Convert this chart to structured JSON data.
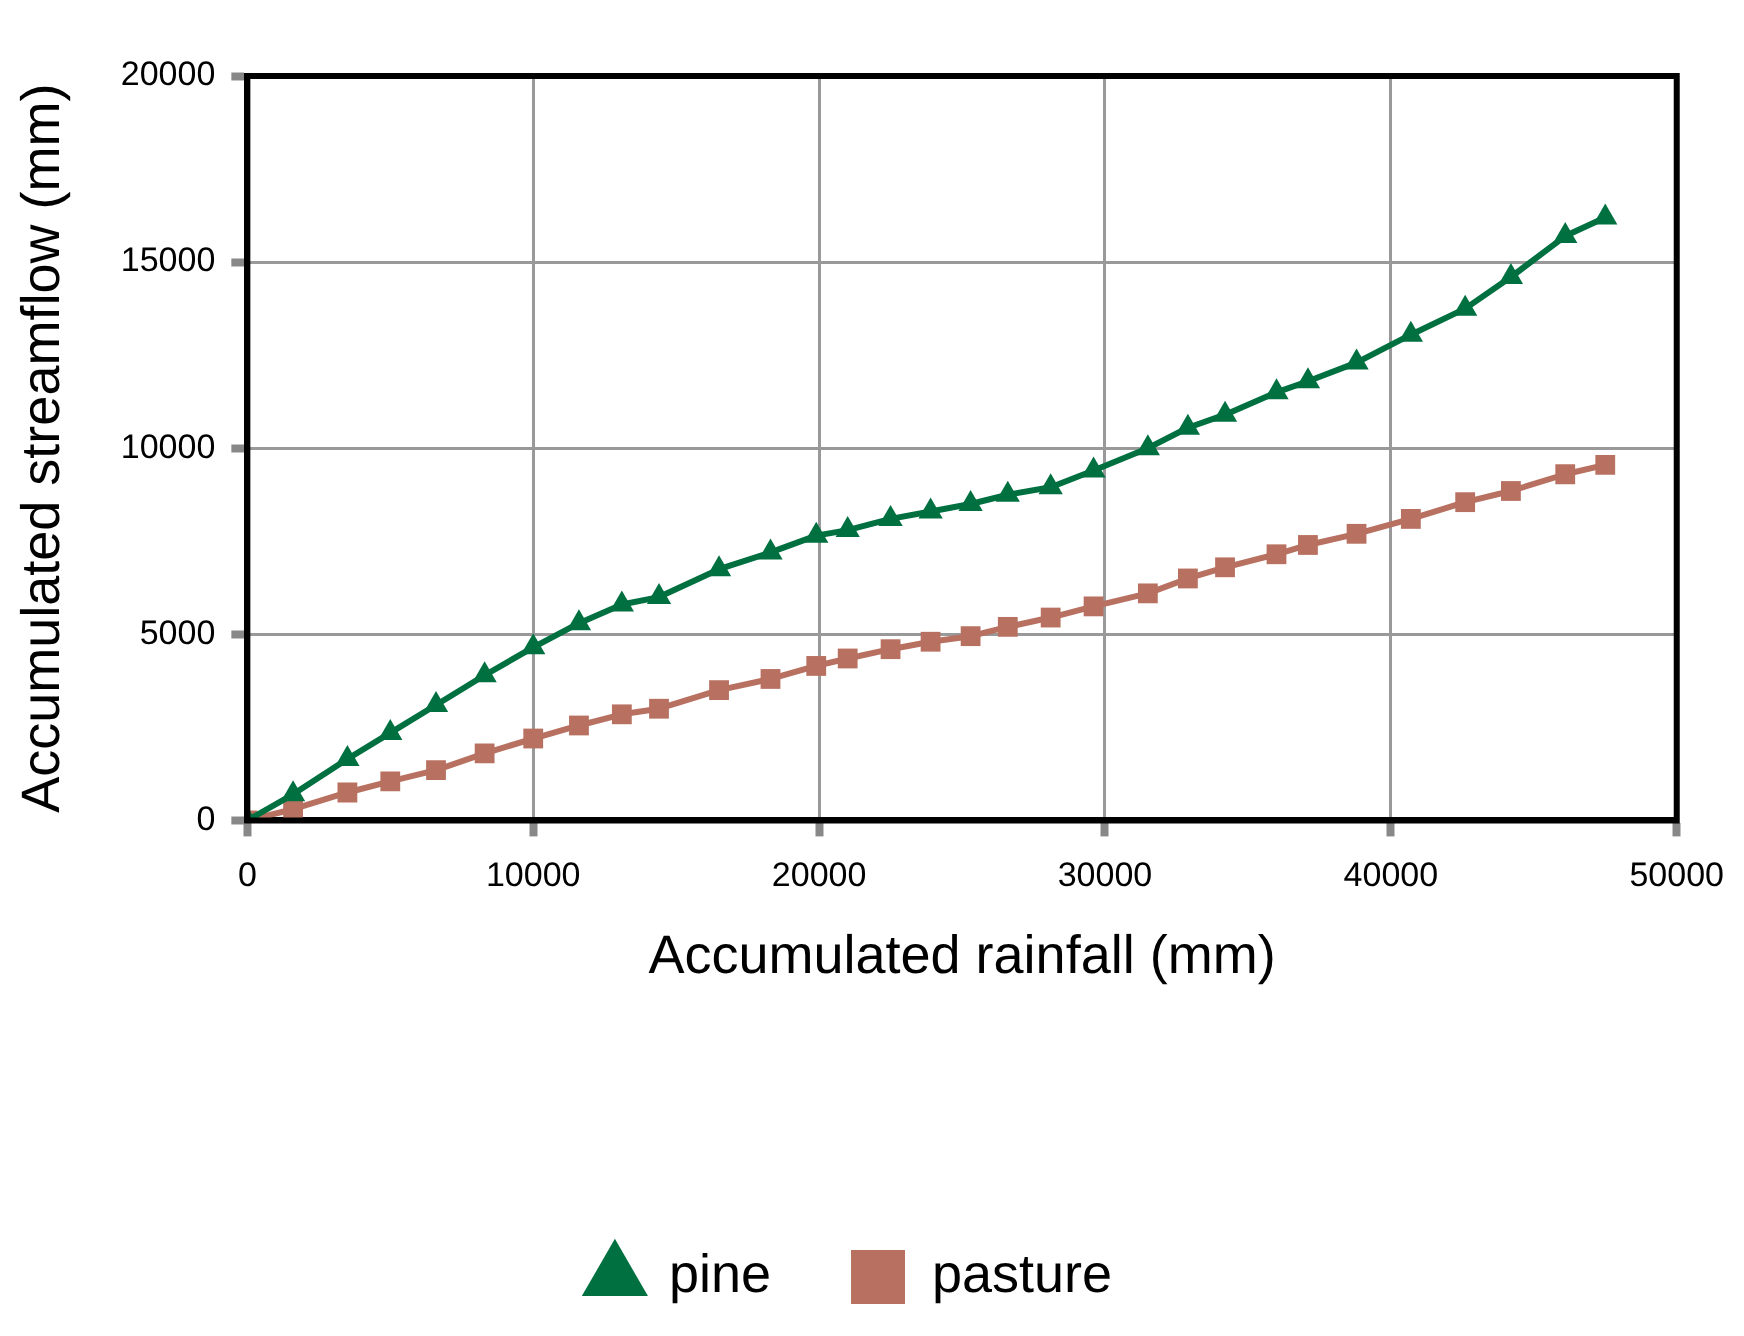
{
  "chart_data": {
    "type": "line",
    "xlabel": "Accumulated rainfall (mm)",
    "ylabel": "Accumulated streamflow (mm)",
    "x": [
      0,
      1600,
      3500,
      5000,
      6600,
      8300,
      10000,
      11600,
      13100,
      14400,
      16500,
      18300,
      19900,
      21000,
      22500,
      23900,
      25300,
      26600,
      28100,
      29600,
      31500,
      32900,
      34200,
      36000,
      37100,
      38800,
      40700,
      42600,
      44200,
      46100,
      47500
    ],
    "series": [
      {
        "name": "pine",
        "color": "#007040",
        "marker": "triangle",
        "values": [
          0,
          700,
          1650,
          2350,
          3100,
          3900,
          4650,
          5300,
          5800,
          6000,
          6750,
          7200,
          7650,
          7800,
          8100,
          8300,
          8500,
          8750,
          8950,
          9400,
          10000,
          10550,
          10900,
          11500,
          11800,
          12300,
          13050,
          13750,
          14600,
          15700,
          16200
        ]
      },
      {
        "name": "pasture",
        "color": "#b87060",
        "marker": "square",
        "values": [
          0,
          300,
          750,
          1050,
          1350,
          1800,
          2200,
          2550,
          2850,
          3000,
          3500,
          3800,
          4150,
          4350,
          4600,
          4800,
          4950,
          5200,
          5450,
          5750,
          6100,
          6500,
          6800,
          7150,
          7400,
          7700,
          8100,
          8550,
          8850,
          9300,
          9550
        ]
      }
    ],
    "xlim": [
      0,
      50000
    ],
    "xticks": [
      0,
      10000,
      20000,
      30000,
      40000,
      50000
    ],
    "ylim": [
      0,
      20000
    ],
    "yticks": [
      0,
      5000,
      10000,
      15000,
      20000
    ],
    "grid": true,
    "legend": "bottom",
    "line_style": "solid"
  }
}
